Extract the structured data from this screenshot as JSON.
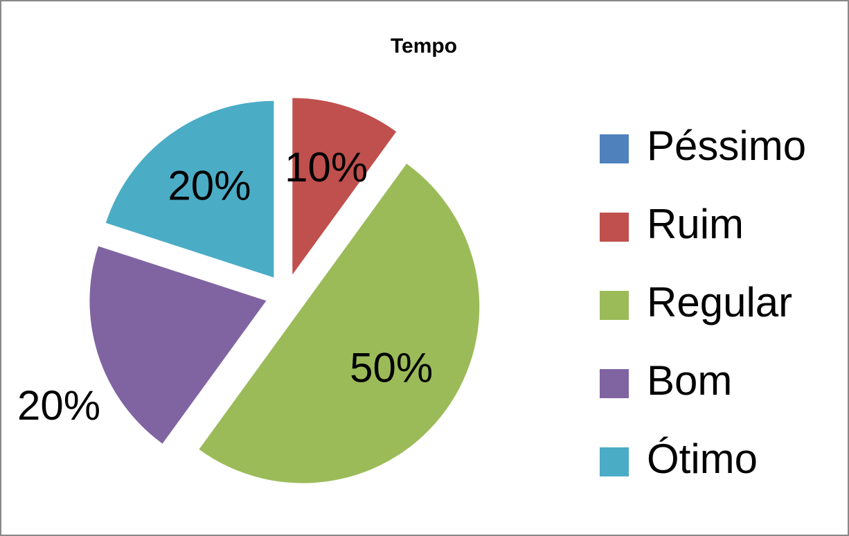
{
  "chart_data": {
    "type": "pie",
    "title": "Tempo",
    "categories": [
      "Péssimo",
      "Ruim",
      "Regular",
      "Bom",
      "Ótimo"
    ],
    "values": [
      0,
      10,
      50,
      20,
      20
    ],
    "value_labels": [
      null,
      "10%",
      "50%",
      "20%",
      "20%"
    ],
    "colors": [
      "#4f81bd",
      "#c0504d",
      "#9bbb59",
      "#8064a2",
      "#4bacc6"
    ],
    "legend": "right"
  }
}
